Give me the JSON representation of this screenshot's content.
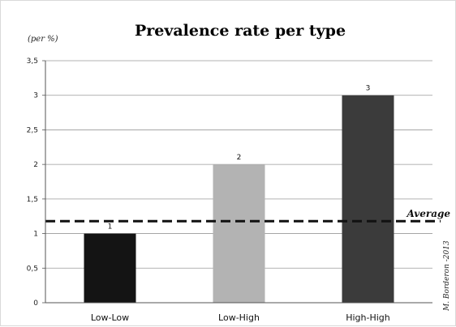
{
  "chart_data": {
    "type": "bar",
    "title": "Prevalence rate per type",
    "ylabel": "(per %)",
    "xlabel": "",
    "categories": [
      "Low-Low",
      "Low-High",
      "High-High"
    ],
    "values": [
      1,
      2,
      3
    ],
    "data_labels": [
      "1",
      "2",
      "3"
    ],
    "bar_colors": [
      "#141414",
      "#b3b3b3",
      "#3b3b3b"
    ],
    "ylim": [
      0,
      3.5
    ],
    "yticks": [
      0,
      0.5,
      1,
      1.5,
      2,
      2.5,
      3,
      3.5
    ],
    "ytick_labels": [
      "0",
      "0,5",
      "1",
      "1,5",
      "2",
      "2,5",
      "3",
      "3,5"
    ],
    "grid": true,
    "reference_line": {
      "label": "Average",
      "value": 1.18,
      "style": "dashed",
      "color": "#111111"
    },
    "annotation": "M. Borderon -2013"
  }
}
